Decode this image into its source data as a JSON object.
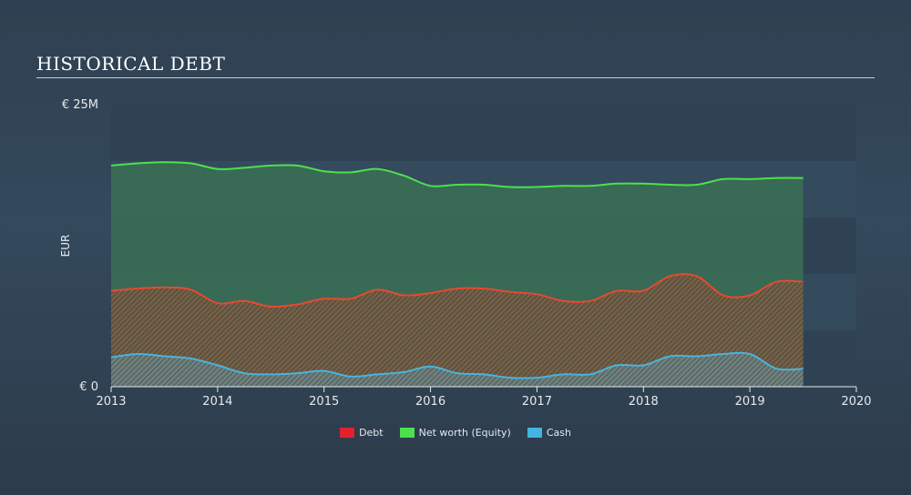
{
  "title": "HISTORICAL DEBT",
  "chart_data": {
    "type": "area",
    "ylabel": "EUR",
    "ylim": [
      0,
      25
    ],
    "y_tick_labels": [
      "€ 0",
      "€ 25M"
    ],
    "y_ticks": [
      0,
      25
    ],
    "xlim": [
      2013,
      2020
    ],
    "x_ticks": [
      2013,
      2014,
      2015,
      2016,
      2017,
      2018,
      2019,
      2020
    ],
    "x_tick_labels": [
      "2013",
      "2014",
      "2015",
      "2016",
      "2017",
      "2018",
      "2019",
      "2020"
    ],
    "x": [
      2013.0,
      2013.25,
      2013.5,
      2013.75,
      2014.0,
      2014.25,
      2014.5,
      2014.75,
      2015.0,
      2015.25,
      2015.5,
      2015.75,
      2016.0,
      2016.25,
      2016.5,
      2016.75,
      2017.0,
      2017.25,
      2017.5,
      2017.75,
      2018.0,
      2018.25,
      2018.5,
      2018.75,
      2019.0,
      2019.25,
      2019.5
    ],
    "series": [
      {
        "name": "Net worth (Equity)",
        "color": "#4de04d",
        "values": [
          19.6,
          19.8,
          19.9,
          19.8,
          19.3,
          19.4,
          19.6,
          19.6,
          19.1,
          19.0,
          19.3,
          18.7,
          17.8,
          17.9,
          17.9,
          17.7,
          17.7,
          17.8,
          17.8,
          18.0,
          18.0,
          17.9,
          17.9,
          18.4,
          18.4,
          18.5,
          18.5
        ]
      },
      {
        "name": "Debt",
        "color": "#e64a2e",
        "values": [
          8.5,
          8.7,
          8.8,
          8.6,
          7.4,
          7.6,
          7.1,
          7.3,
          7.8,
          7.8,
          8.6,
          8.1,
          8.3,
          8.7,
          8.7,
          8.4,
          8.2,
          7.6,
          7.6,
          8.5,
          8.5,
          9.8,
          9.8,
          8.1,
          8.1,
          9.3,
          9.3
        ]
      },
      {
        "name": "Cash",
        "color": "#4ab3dd",
        "values": [
          2.6,
          2.9,
          2.7,
          2.5,
          1.9,
          1.2,
          1.1,
          1.2,
          1.4,
          0.9,
          1.1,
          1.3,
          1.8,
          1.2,
          1.1,
          0.8,
          0.8,
          1.1,
          1.1,
          1.9,
          1.9,
          2.7,
          2.7,
          2.9,
          2.9,
          1.6,
          1.6
        ]
      }
    ],
    "legend": [
      {
        "label": "Debt",
        "color": "#e5202e"
      },
      {
        "label": "Net worth (Equity)",
        "color": "#4ce04c"
      },
      {
        "label": "Cash",
        "color": "#42b5e0"
      }
    ],
    "legend_position": "bottom"
  }
}
